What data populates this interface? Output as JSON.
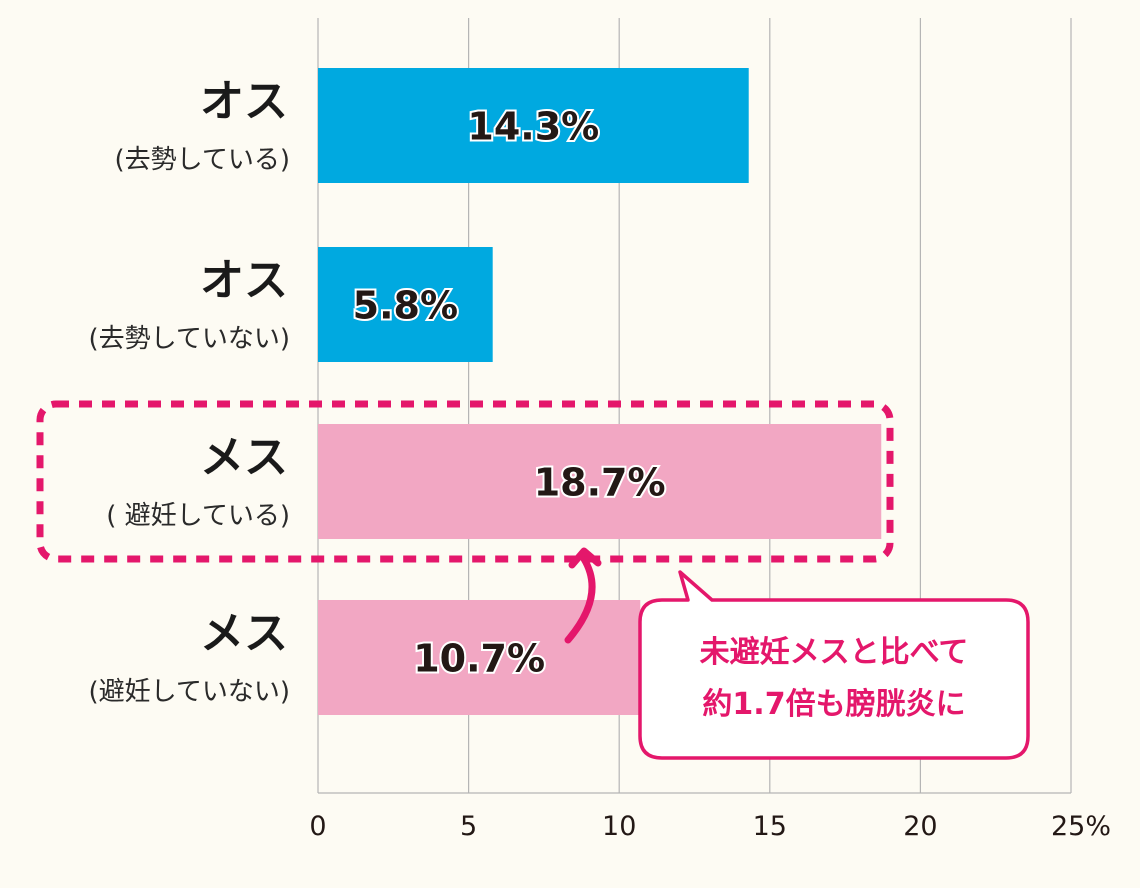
{
  "chart_data": {
    "type": "bar",
    "orientation": "horizontal",
    "categories": [
      {
        "main": "オス",
        "sub": "(去勢している)"
      },
      {
        "main": "オス",
        "sub": "(去勢していない)"
      },
      {
        "main": "メス",
        "sub": "( 避妊している)"
      },
      {
        "main": "メス",
        "sub": "(避妊していない)"
      }
    ],
    "values": [
      14.3,
      5.8,
      18.7,
      10.7
    ],
    "value_labels": [
      "14.3%",
      "5.8%",
      "18.7%",
      "10.7%"
    ],
    "bar_colors": [
      "#00a9e0",
      "#00a9e0",
      "#f2a7c3",
      "#f2a7c3"
    ],
    "xlim": [
      0,
      25
    ],
    "x_ticks": [
      0,
      5,
      10,
      15,
      20,
      25
    ],
    "x_tick_labels": [
      "0",
      "5",
      "10",
      "15",
      "20",
      "25%"
    ],
    "grid": true,
    "highlighted_category_index": 2,
    "annotation": {
      "lines": [
        "未避妊メスと比べて",
        "約1.7倍も膀胱炎に"
      ],
      "arrow_from_index": 3,
      "arrow_to_index": 2
    }
  },
  "colors": {
    "background": "#fdfbf3",
    "grid": "#b5b5b5",
    "accent": "#e4176b",
    "text": "#231815"
  }
}
